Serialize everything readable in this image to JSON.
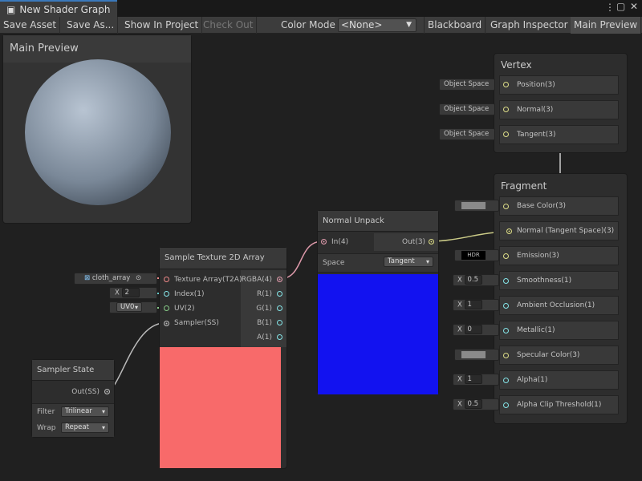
{
  "window": {
    "tab_title": "New Shader Graph"
  },
  "toolbar": {
    "save_asset": "Save Asset",
    "save_as": "Save As...",
    "show_in_project": "Show In Project",
    "check_out": "Check Out",
    "color_mode_label": "Color Mode",
    "color_mode_value": "<None>",
    "blackboard": "Blackboard",
    "graph_inspector": "Graph Inspector",
    "main_preview": "Main Preview"
  },
  "preview": {
    "title": "Main Preview"
  },
  "vertex": {
    "title": "Vertex",
    "rows": [
      {
        "label": "Position(3)",
        "input": "Object Space"
      },
      {
        "label": "Normal(3)",
        "input": "Object Space"
      },
      {
        "label": "Tangent(3)",
        "input": "Object Space"
      }
    ]
  },
  "fragment": {
    "title": "Fragment",
    "rows": [
      {
        "label": "Base Color(3)",
        "type": "color",
        "value": ""
      },
      {
        "label": "Normal (Tangent Space)(3)",
        "type": "connected",
        "value": ""
      },
      {
        "label": "Emission(3)",
        "type": "hdr",
        "value": "HDR"
      },
      {
        "label": "Smoothness(1)",
        "type": "float",
        "value": "0.5"
      },
      {
        "label": "Ambient Occlusion(1)",
        "type": "float",
        "value": "1"
      },
      {
        "label": "Metallic(1)",
        "type": "float",
        "value": "0"
      },
      {
        "label": "Specular Color(3)",
        "type": "color",
        "value": ""
      },
      {
        "label": "Alpha(1)",
        "type": "float",
        "value": "1"
      },
      {
        "label": "Alpha Clip Threshold(1)",
        "type": "float",
        "value": "0.5"
      }
    ]
  },
  "normal_unpack": {
    "title": "Normal Unpack",
    "in": "In(4)",
    "out": "Out(3)",
    "space_label": "Space",
    "space_value": "Tangent"
  },
  "sample_tex": {
    "title": "Sample Texture 2D Array",
    "inputs": [
      "Texture Array(T2A)",
      "Index(1)",
      "UV(2)",
      "Sampler(SS)"
    ],
    "outputs": [
      "RGBA(4)",
      "R(1)",
      "G(1)",
      "B(1)",
      "A(1)"
    ],
    "texture_value": "cloth_array",
    "index_value": "2",
    "uv_value": "UV0",
    "x_label": "X"
  },
  "sampler_state": {
    "title": "Sampler State",
    "out": "Out(SS)",
    "filter_label": "Filter",
    "filter_value": "Trilinear",
    "wrap_label": "Wrap",
    "wrap_value": "Repeat"
  },
  "colors": {
    "accent": "#3a79bb",
    "normal_preview": "#1010f0",
    "texture_preview": "#f86a6a"
  }
}
